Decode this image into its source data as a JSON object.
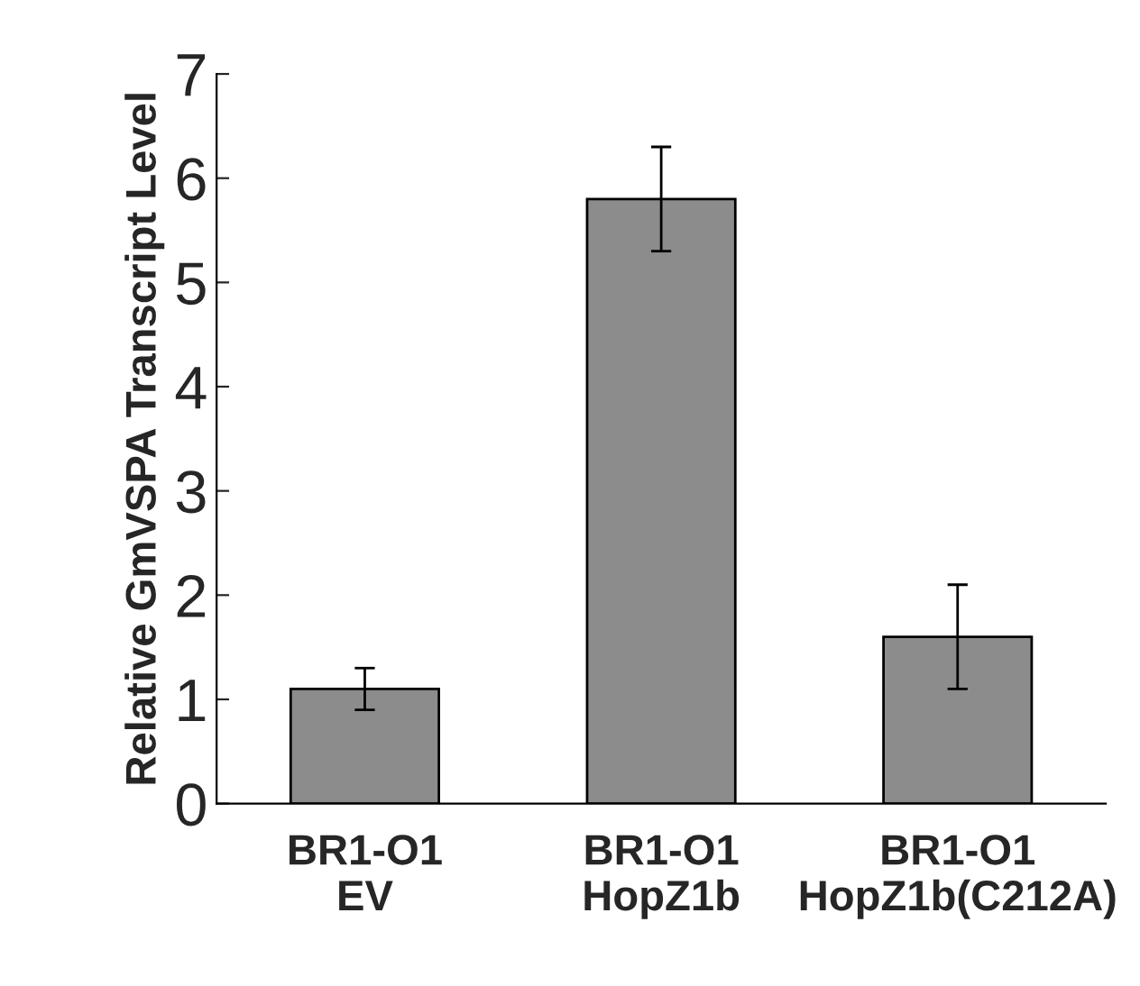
{
  "chart_data": {
    "type": "bar",
    "ylabel": "Relative GmVSPA Transcript Level",
    "categories": [
      "BR1-O1\nEV",
      "BR1-O1\nHopZ1b",
      "BR1-O1\nHopZ1b(C212A)"
    ],
    "values": [
      1.1,
      5.8,
      1.6
    ],
    "errors": [
      0.2,
      0.5,
      0.5
    ],
    "color": "#8c8c8c",
    "ylim": [
      0,
      7
    ],
    "yticks": [
      0,
      1,
      2,
      3,
      4,
      5,
      6,
      7
    ],
    "grid": false,
    "legend": false
  }
}
